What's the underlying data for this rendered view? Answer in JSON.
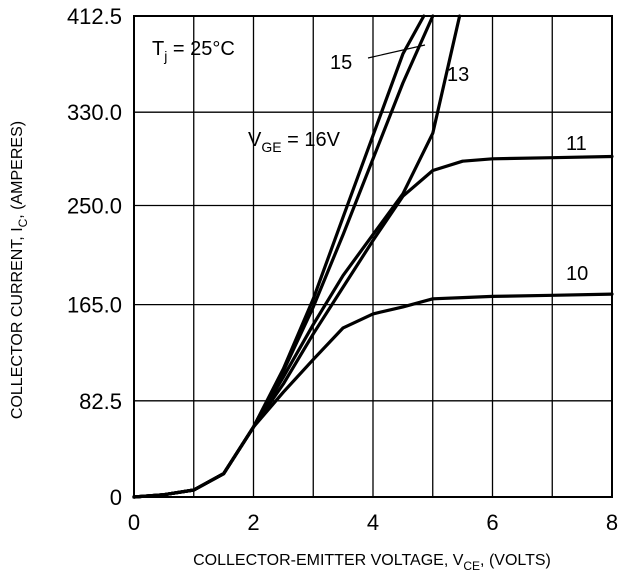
{
  "chart_data": {
    "type": "line",
    "title": "",
    "xlabel": {
      "main": "COLLECTOR-EMITTER VOLTAGE, V",
      "sub": "CE",
      "tail": ", (VOLTS)"
    },
    "ylabel": {
      "main": "COLLECTOR CURRENT, I",
      "sub": "C",
      "tail": ", (AMPERES)"
    },
    "xlim": [
      0,
      8
    ],
    "ylim": [
      0,
      412.5
    ],
    "x_ticks": [
      {
        "value": 0,
        "label": "0"
      },
      {
        "value": 2,
        "label": "2"
      },
      {
        "value": 4,
        "label": "4"
      },
      {
        "value": 6,
        "label": "6"
      },
      {
        "value": 8,
        "label": "8"
      }
    ],
    "y_ticks": [
      {
        "value": 0,
        "label": "0"
      },
      {
        "value": 82.5,
        "label": "82.5"
      },
      {
        "value": 165,
        "label": "165.0"
      },
      {
        "value": 250,
        "label": "250.0"
      },
      {
        "value": 330,
        "label": "330.0"
      },
      {
        "value": 412.5,
        "label": "412.5"
      }
    ],
    "x_grid": [
      1,
      2,
      3,
      4,
      5,
      6,
      7
    ],
    "y_grid": [
      82.5,
      165,
      250,
      330
    ],
    "grid": true,
    "annotations": {
      "tj": {
        "main": "T",
        "sub": "j",
        "tail": " = 25°C"
      },
      "vge": {
        "main": "V",
        "sub": "GE",
        "tail": " = 16V"
      }
    },
    "series": [
      {
        "name": "16",
        "points": [
          [
            0,
            0
          ],
          [
            0.5,
            2
          ],
          [
            1,
            6
          ],
          [
            1.5,
            20
          ],
          [
            2,
            60
          ],
          [
            2.5,
            110
          ],
          [
            3,
            170
          ],
          [
            3.5,
            240
          ],
          [
            4,
            310
          ],
          [
            4.5,
            380
          ],
          [
            4.85,
            412.5
          ]
        ]
      },
      {
        "name": "15",
        "points": [
          [
            0,
            0
          ],
          [
            0.5,
            2
          ],
          [
            1,
            6
          ],
          [
            1.5,
            20
          ],
          [
            2,
            60
          ],
          [
            2.5,
            108
          ],
          [
            3,
            163
          ],
          [
            3.5,
            225
          ],
          [
            4,
            290
          ],
          [
            4.5,
            355
          ],
          [
            5,
            412.5
          ]
        ]
      },
      {
        "name": "13",
        "points": [
          [
            0,
            0
          ],
          [
            0.5,
            2
          ],
          [
            1,
            6
          ],
          [
            1.5,
            20
          ],
          [
            2,
            60
          ],
          [
            2.5,
            103
          ],
          [
            3,
            148
          ],
          [
            3.5,
            190
          ],
          [
            4,
            225
          ],
          [
            4.5,
            260
          ],
          [
            5,
            312
          ],
          [
            5.45,
            412.5
          ]
        ]
      },
      {
        "name": "11",
        "points": [
          [
            0,
            0
          ],
          [
            0.5,
            2
          ],
          [
            1,
            6
          ],
          [
            1.5,
            20
          ],
          [
            2,
            60
          ],
          [
            2.5,
            97
          ],
          [
            3,
            140
          ],
          [
            3.5,
            180
          ],
          [
            4,
            220
          ],
          [
            4.5,
            258
          ],
          [
            5,
            280
          ],
          [
            5.5,
            288
          ],
          [
            6,
            290
          ],
          [
            7,
            291
          ],
          [
            8,
            292
          ]
        ]
      },
      {
        "name": "10",
        "points": [
          [
            0,
            0
          ],
          [
            0.5,
            2
          ],
          [
            1,
            6
          ],
          [
            1.5,
            20
          ],
          [
            2,
            60
          ],
          [
            2.5,
            90
          ],
          [
            3,
            118
          ],
          [
            3.5,
            145
          ],
          [
            4,
            157
          ],
          [
            4.5,
            163
          ],
          [
            5,
            170
          ],
          [
            5.5,
            171
          ],
          [
            6,
            172
          ],
          [
            7,
            173
          ],
          [
            8,
            174
          ]
        ]
      }
    ],
    "curve_labels": [
      {
        "text": "15",
        "series": "15"
      },
      {
        "text": "13",
        "series": "13"
      },
      {
        "text": "11",
        "series": "11"
      },
      {
        "text": "10",
        "series": "10"
      }
    ]
  }
}
